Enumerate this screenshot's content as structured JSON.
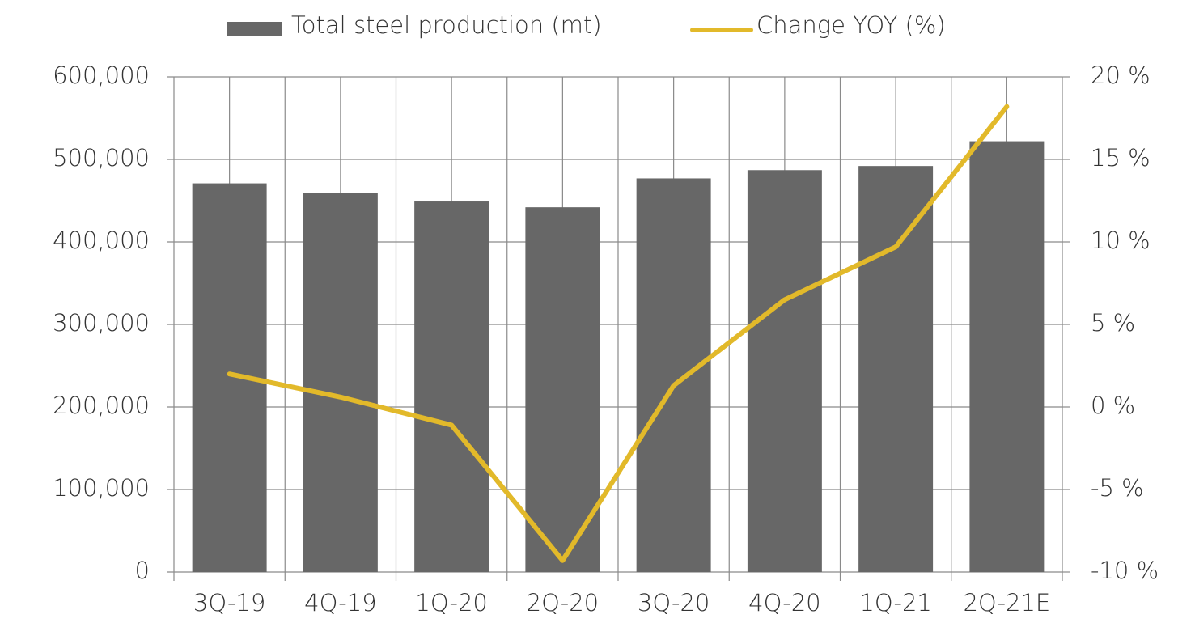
{
  "chart_data": {
    "type": "bar",
    "categories": [
      "3Q-19",
      "4Q-19",
      "1Q-20",
      "2Q-20",
      "3Q-20",
      "4Q-20",
      "1Q-21",
      "2Q-21E"
    ],
    "series": [
      {
        "name": "Total steel production (mt)",
        "type": "bar",
        "color": "#676767",
        "values": [
          471000,
          459000,
          449000,
          442000,
          477000,
          487000,
          492000,
          522000
        ]
      },
      {
        "name": "Change YOY (%)",
        "type": "line",
        "axis": "y2",
        "color": "#e2b92a",
        "values": [
          2.0,
          0.6,
          -1.1,
          -9.3,
          1.3,
          6.5,
          9.7,
          18.2
        ]
      }
    ],
    "ylim": [
      0,
      600000
    ],
    "yticks": [
      0,
      {
        "value": 100000,
        "label": "100,000"
      },
      {
        "value": 200000,
        "label": "200,000"
      },
      {
        "value": 300000,
        "label": "300,000"
      },
      {
        "value": 400000,
        "label": "400,000"
      },
      {
        "value": 500000,
        "label": "500,000"
      },
      {
        "value": 600000,
        "label": "600,000"
      }
    ],
    "y2lim": [
      -10,
      20
    ],
    "y2ticks": [
      {
        "value": -10,
        "label": "-10 %"
      },
      {
        "value": -5,
        "label": "-5 %"
      },
      {
        "value": 0,
        "label": "0 %"
      },
      {
        "value": 5,
        "label": "5 %"
      },
      {
        "value": 10,
        "label": "10 %"
      },
      {
        "value": 15,
        "label": "15 %"
      },
      {
        "value": 20,
        "label": "20 %"
      }
    ],
    "grid": true,
    "legend": "top"
  }
}
